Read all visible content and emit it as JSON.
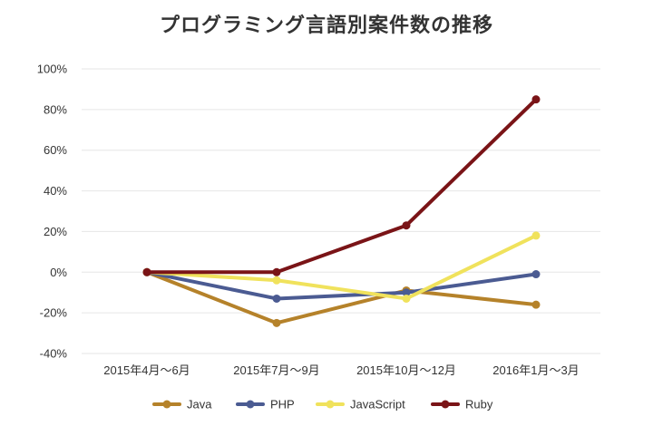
{
  "title": "プログラミング言語別案件数の推移",
  "chart_data": {
    "type": "line",
    "title": "プログラミング言語別案件数の推移",
    "xlabel": "",
    "ylabel": "",
    "categories": [
      "2015年4月〜6月",
      "2015年7月〜9月",
      "2015年10月〜12月",
      "2016年1月〜3月"
    ],
    "ylim": [
      -40,
      100
    ],
    "yticks": [
      -40,
      -20,
      0,
      20,
      40,
      60,
      80,
      100
    ],
    "ytick_labels": [
      "-40%",
      "-20%",
      "0%",
      "20%",
      "40%",
      "60%",
      "80%",
      "100%"
    ],
    "grid": true,
    "legend_position": "bottom",
    "series": [
      {
        "name": "Java",
        "color": "#b5822a",
        "values": [
          0,
          -25,
          -9,
          -16
        ]
      },
      {
        "name": "PHP",
        "color": "#4b5b92",
        "values": [
          0,
          -13,
          -10,
          -1
        ]
      },
      {
        "name": "JavaScript",
        "color": "#f0e25c",
        "values": [
          0,
          -4,
          -13,
          18
        ]
      },
      {
        "name": "Ruby",
        "color": "#7a1417",
        "values": [
          0,
          0,
          23,
          85
        ]
      }
    ]
  }
}
